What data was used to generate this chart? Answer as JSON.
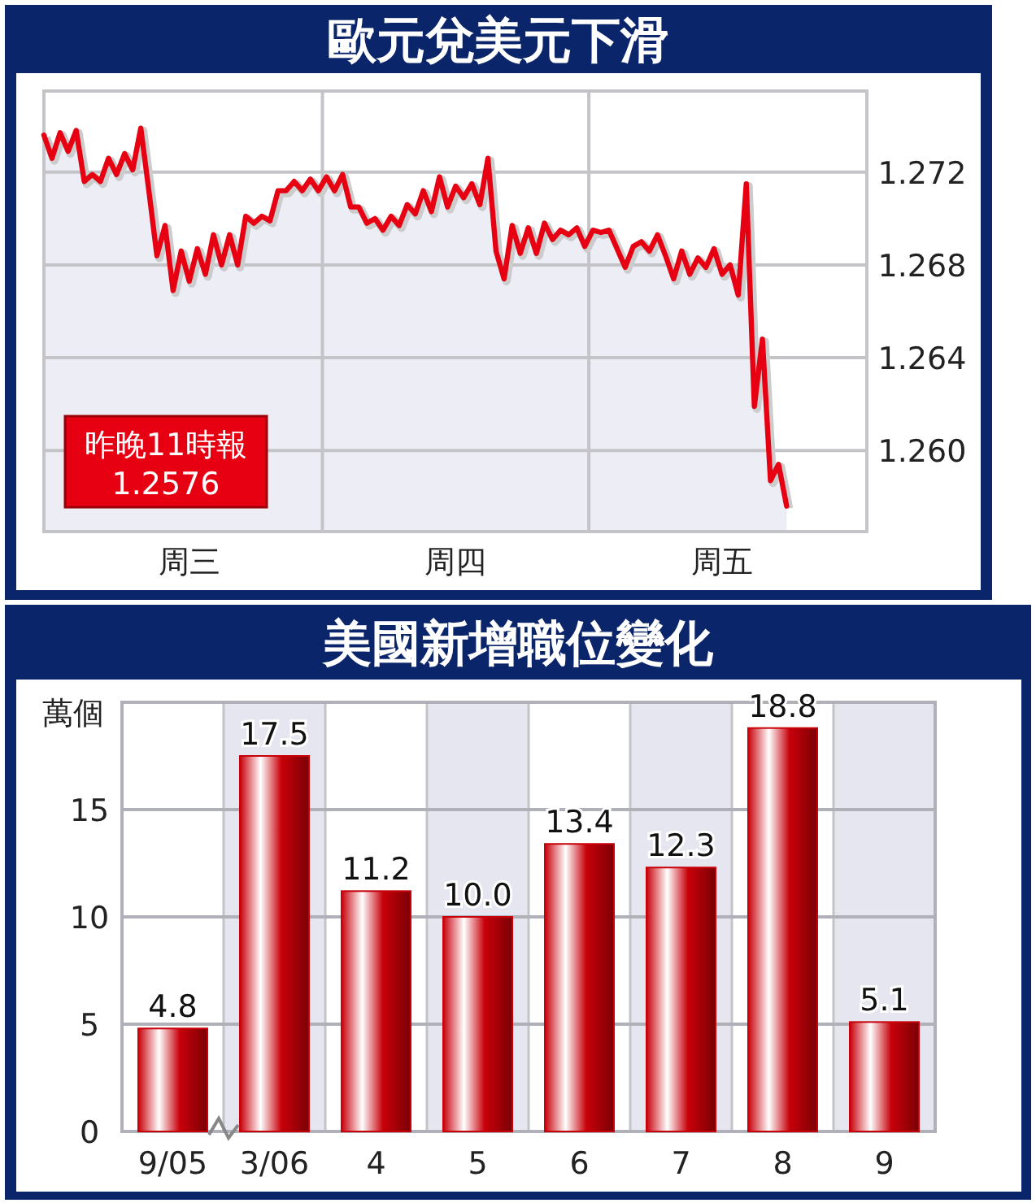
{
  "chart_data": [
    {
      "type": "area",
      "title": "歐元兌美元下滑",
      "categories": [
        null,
        null,
        null,
        null,
        null,
        null,
        null,
        null,
        null,
        null,
        null,
        null,
        null,
        null,
        null,
        null,
        null,
        null,
        "周三",
        null,
        null,
        null,
        null,
        null,
        null,
        null,
        null,
        null,
        null,
        null,
        null,
        null,
        null,
        null,
        null,
        null,
        null,
        null,
        null,
        null,
        null,
        null,
        null,
        null,
        null,
        null,
        null,
        null,
        null,
        null,
        null,
        "周四",
        null,
        null,
        null,
        null,
        null,
        null,
        null,
        null,
        null,
        null,
        null,
        null,
        null,
        null,
        null,
        null,
        null,
        null,
        null,
        null,
        null,
        null,
        null,
        null,
        null,
        null,
        null,
        null,
        null,
        null,
        null,
        null,
        "周五",
        null,
        null,
        null,
        null,
        null,
        null,
        null,
        null
      ],
      "ylim": [
        1.2565,
        1.2755
      ],
      "yticks": [
        {
          "value": 1.26,
          "label": "1.260"
        },
        {
          "value": 1.264,
          "label": "1.264"
        },
        {
          "value": 1.268,
          "label": "1.268"
        },
        {
          "value": 1.272,
          "label": "1.272"
        }
      ],
      "grid": true,
      "annotations": [
        "昨晚11時報",
        "1.2576"
      ],
      "series": [
        {
          "color": "#e60012",
          "values": [
            1.2736,
            1.2726,
            1.2737,
            1.2729,
            1.2738,
            1.2716,
            1.2719,
            1.2716,
            1.2726,
            1.2719,
            1.2728,
            1.2721,
            1.2739,
            1.2712,
            1.2684,
            1.2697,
            1.2669,
            1.2686,
            1.2673,
            1.2687,
            1.2676,
            1.2693,
            1.268,
            1.2693,
            1.268,
            1.2701,
            1.2698,
            1.2701,
            1.2699,
            1.2712,
            1.2712,
            1.2716,
            1.2712,
            1.2717,
            1.2712,
            1.2718,
            1.2712,
            1.2719,
            1.2705,
            1.2705,
            1.2698,
            1.27,
            1.2695,
            1.2701,
            1.2697,
            1.2706,
            1.2702,
            1.2712,
            1.2703,
            1.2718,
            1.2705,
            1.2714,
            1.2709,
            1.2715,
            1.2706,
            1.2726,
            1.2686,
            1.2674,
            1.2697,
            1.2685,
            1.2696,
            1.2685,
            1.2698,
            1.2691,
            1.2695,
            1.2693,
            1.2696,
            1.2688,
            1.2695,
            1.2694,
            1.2695,
            1.2687,
            1.2679,
            1.2688,
            1.269,
            1.2686,
            1.2693,
            1.2684,
            1.2674,
            1.2686,
            1.2676,
            1.2683,
            1.2679,
            1.2687,
            1.2676,
            1.268,
            1.2667,
            1.2715,
            1.2619,
            1.2648,
            1.2587,
            1.2594,
            1.2576
          ]
        }
      ]
    },
    {
      "type": "bar",
      "title": "美國新增職位變化",
      "ylabel": "萬個",
      "categories": [
        "9/05",
        "3/06",
        "4",
        "5",
        "6",
        "7",
        "8",
        "9"
      ],
      "values": [
        4.8,
        17.5,
        11.2,
        10.0,
        13.4,
        12.3,
        18.8,
        5.1
      ],
      "color": "#c8000a",
      "ylim": [
        0,
        20
      ],
      "yticks": [
        0,
        5,
        10,
        15
      ],
      "value_labels": [
        "4.8",
        "17.5",
        "11.2",
        "10.0",
        "13.4",
        "12.3",
        "18.8",
        "5.1"
      ],
      "grid": "y"
    }
  ]
}
